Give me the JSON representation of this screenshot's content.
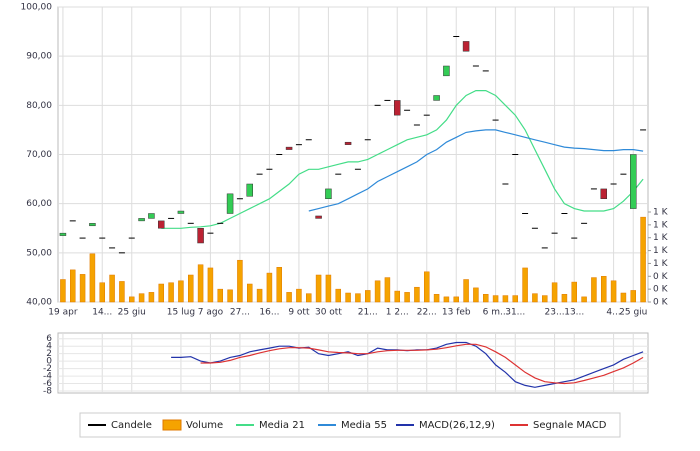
{
  "chart_data": [
    {
      "type": "candlestick",
      "categories": [
        "19 apr",
        null,
        null,
        null,
        "14...",
        null,
        null,
        "25 giu",
        null,
        null,
        null,
        null,
        "15 lug",
        null,
        null,
        "7 ago",
        null,
        null,
        "27...",
        null,
        null,
        "16...",
        null,
        null,
        "9 ott",
        null,
        null,
        "30 ott",
        null,
        null,
        null,
        "21...",
        null,
        null,
        "1 2...",
        null,
        null,
        "22...",
        null,
        null,
        "13 feb",
        null,
        null,
        null,
        "6 m...",
        null,
        "31...",
        null,
        null,
        null,
        "23...",
        null,
        "13...",
        null,
        null,
        null,
        "4...",
        null,
        "25 giu",
        null
      ],
      "candles": {
        "name": "Candele",
        "color": "#000000",
        "up_color": "#33cc55",
        "down_color": "#bb2233",
        "open": [
          53.5,
          56.5,
          53,
          55.5,
          53,
          51,
          50,
          53,
          56.5,
          57,
          56.5,
          57,
          58,
          56,
          55,
          54,
          56,
          58,
          61,
          61.5,
          66,
          67,
          70,
          71.5,
          72,
          73,
          57.5,
          61,
          66,
          72.5,
          67,
          73,
          80,
          81,
          81,
          79,
          76,
          78,
          81,
          86,
          94,
          93,
          88,
          87,
          77,
          64,
          70,
          58,
          55,
          51,
          54,
          58,
          53,
          56,
          63,
          63,
          64,
          66,
          59,
          75
        ],
        "close": [
          54,
          56.5,
          53,
          56,
          53,
          51,
          50,
          53,
          57,
          58,
          55,
          57,
          58.5,
          56,
          52,
          54,
          56,
          62,
          61,
          64,
          66,
          67,
          70,
          71,
          72,
          73,
          57,
          63,
          66,
          72,
          67,
          73,
          80,
          81,
          78,
          79,
          76,
          78,
          82,
          88,
          94,
          91,
          88,
          87,
          77,
          64,
          70,
          58,
          55,
          51,
          54,
          58,
          53,
          56,
          63,
          61,
          64,
          66,
          70,
          75
        ]
      },
      "volume": {
        "name": "Volume",
        "color": "#f5a300",
        "axis": "y2",
        "values": [
          350,
          500,
          430,
          750,
          300,
          420,
          320,
          80,
          130,
          150,
          280,
          300,
          330,
          420,
          580,
          530,
          200,
          190,
          650,
          280,
          200,
          450,
          540,
          150,
          200,
          130,
          420,
          420,
          200,
          140,
          130,
          180,
          330,
          380,
          170,
          150,
          230,
          470,
          120,
          80,
          80,
          350,
          220,
          120,
          100,
          100,
          100,
          530,
          130,
          100,
          300,
          120,
          310,
          80,
          380,
          400,
          330,
          140,
          180,
          1320
        ]
      },
      "series": [
        {
          "name": "Media 21",
          "color": "#44dd88",
          "values": [
            null,
            null,
            null,
            null,
            null,
            null,
            null,
            null,
            null,
            null,
            55,
            55,
            55,
            55.2,
            55.3,
            55.5,
            56,
            57,
            58,
            59,
            60,
            61,
            62.5,
            64,
            66,
            67,
            67,
            67.5,
            68,
            68.5,
            68.5,
            69,
            70,
            71,
            72,
            73,
            73.5,
            74,
            75,
            77,
            80,
            82,
            83,
            83,
            82,
            80,
            78,
            75,
            71,
            67,
            63,
            60,
            59,
            58.5,
            58.5,
            58.5,
            59,
            60.5,
            62.5,
            65
          ]
        },
        {
          "name": "Media 55",
          "color": "#2f8ad8",
          "values": [
            null,
            null,
            null,
            null,
            null,
            null,
            null,
            null,
            null,
            null,
            null,
            null,
            null,
            null,
            null,
            null,
            null,
            null,
            null,
            null,
            null,
            null,
            null,
            null,
            null,
            58.5,
            59,
            59.5,
            60,
            61,
            62,
            63,
            64.5,
            65.5,
            66.5,
            67.5,
            68.5,
            70,
            71,
            72.5,
            73.5,
            74.5,
            74.8,
            75,
            75,
            74.5,
            74,
            73.5,
            73,
            72.5,
            72,
            71.5,
            71.3,
            71.2,
            71,
            70.8,
            70.8,
            71,
            71,
            70.7
          ]
        }
      ],
      "ylim": [
        40,
        100
      ],
      "yticks": [
        {
          "value": 40,
          "label": "40,00"
        },
        {
          "value": 50,
          "label": "50,00"
        },
        {
          "value": 60,
          "label": "60,00"
        },
        {
          "value": 70,
          "label": "70,00"
        },
        {
          "value": 80,
          "label": "80,00"
        },
        {
          "value": 90,
          "label": "90,00"
        },
        {
          "value": 100,
          "label": "100,00"
        }
      ],
      "y2lim": [
        0,
        1400
      ],
      "y2ticks": [
        {
          "value": 0,
          "label": "0 K"
        },
        {
          "value": 200,
          "label": "0 K"
        },
        {
          "value": 400,
          "label": "0 K"
        },
        {
          "value": 600,
          "label": "1 K"
        },
        {
          "value": 800,
          "label": "1 K"
        },
        {
          "value": 1000,
          "label": "1 K"
        },
        {
          "value": 1200,
          "label": "1 K"
        },
        {
          "value": 1400,
          "label": "1 K"
        }
      ],
      "grid": true
    },
    {
      "type": "line",
      "series": [
        {
          "name": "MACD(26,12,9)",
          "color": "#2233aa",
          "values": [
            null,
            null,
            null,
            null,
            null,
            null,
            null,
            null,
            null,
            null,
            null,
            1,
            1,
            1.2,
            0,
            -0.5,
            0,
            1,
            1.5,
            2.5,
            3,
            3.5,
            4,
            4,
            3.5,
            3.7,
            2,
            1.5,
            2,
            2.5,
            1.5,
            2,
            3.5,
            3,
            3,
            2.8,
            3,
            3,
            3.5,
            4.5,
            5,
            5,
            4,
            2,
            -1,
            -3,
            -5.5,
            -6.5,
            -7,
            -6.5,
            -6,
            -5.5,
            -5,
            -4,
            -3,
            -2,
            -1,
            0.5,
            1.5,
            2.5
          ]
        },
        {
          "name": "Segnale MACD",
          "color": "#dd3333",
          "values": [
            null,
            null,
            null,
            null,
            null,
            null,
            null,
            null,
            null,
            null,
            null,
            null,
            null,
            null,
            -0.5,
            -0.5,
            -0.3,
            0.2,
            1,
            1.5,
            2.2,
            2.8,
            3.3,
            3.6,
            3.6,
            3.5,
            3,
            2.5,
            2.3,
            2.2,
            2,
            2,
            2.5,
            2.8,
            2.9,
            2.9,
            2.9,
            3,
            3.2,
            3.6,
            4.1,
            4.5,
            4.5,
            3.8,
            2.5,
            1,
            -1,
            -3,
            -4.5,
            -5.5,
            -5.8,
            -6,
            -5.8,
            -5.2,
            -4.5,
            -3.8,
            -2.8,
            -1.8,
            -0.5,
            1
          ]
        }
      ],
      "ylim": [
        -8,
        7
      ],
      "yticks": [
        -8,
        -6,
        -4,
        -2,
        0,
        2,
        4,
        6
      ],
      "grid": true
    }
  ]
}
